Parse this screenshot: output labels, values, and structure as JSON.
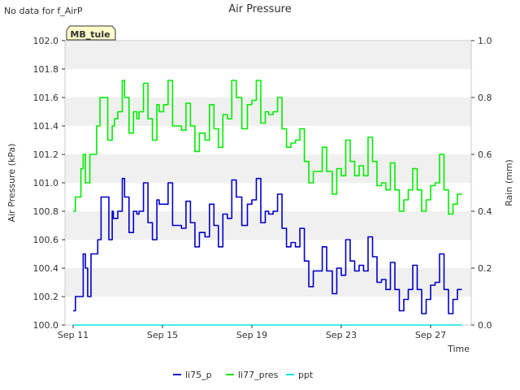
{
  "nodata_note": "No data for f_AirP",
  "chart_data": {
    "type": "line",
    "title": "Air Pressure",
    "xlabel": "Time",
    "ylabel": "Air Pressure (kPa)",
    "y2label": "Rain (mm)",
    "station_badge": "MB_tule",
    "xlim": [
      0,
      18
    ],
    "xticks": [
      {
        "day": 0,
        "label": "Sep 11"
      },
      {
        "day": 4,
        "label": "Sep 15"
      },
      {
        "day": 8,
        "label": "Sep 19"
      },
      {
        "day": 12,
        "label": "Sep 23"
      },
      {
        "day": 16,
        "label": "Sep 27"
      }
    ],
    "ylim": [
      100.0,
      102.0
    ],
    "yticks": [
      "100.0",
      "100.2",
      "100.4",
      "100.6",
      "100.8",
      "101.0",
      "101.2",
      "101.4",
      "101.6",
      "101.8",
      "102.0"
    ],
    "y2lim": [
      0.0,
      1.0
    ],
    "y2ticks": [
      "0.0",
      "0.2",
      "0.4",
      "0.6",
      "0.8",
      "1.0"
    ],
    "legend_position": "bottom-center",
    "series": [
      {
        "name": "li75_p",
        "axis": "left",
        "color": "#0000cc",
        "x": [
          0.0,
          0.1,
          0.25,
          0.45,
          0.55,
          0.65,
          0.8,
          0.95,
          1.1,
          1.25,
          1.45,
          1.6,
          1.75,
          1.8,
          2.0,
          2.2,
          2.3,
          2.5,
          2.7,
          2.85,
          2.95,
          3.15,
          3.35,
          3.55,
          3.75,
          3.85,
          4.05,
          4.25,
          4.45,
          4.7,
          4.85,
          5.05,
          5.25,
          5.45,
          5.65,
          5.9,
          6.1,
          6.3,
          6.5,
          6.7,
          6.9,
          7.1,
          7.3,
          7.55,
          7.8,
          8.0,
          8.2,
          8.4,
          8.6,
          8.75,
          8.95,
          9.15,
          9.35,
          9.55,
          9.75,
          9.95,
          10.15,
          10.35,
          10.55,
          10.75,
          10.95,
          11.15,
          11.35,
          11.6,
          11.8,
          12.0,
          12.2,
          12.4,
          12.6,
          12.8,
          13.0,
          13.2,
          13.4,
          13.6,
          13.8,
          14.0,
          14.2,
          14.4,
          14.6,
          14.8,
          15.0,
          15.2,
          15.4,
          15.6,
          15.8,
          16.0,
          16.2,
          16.4,
          16.6,
          16.8,
          17.0,
          17.2,
          17.4
        ],
        "values": [
          100.1,
          100.2,
          100.2,
          100.5,
          100.4,
          100.2,
          100.5,
          100.5,
          100.6,
          100.9,
          100.9,
          100.6,
          100.8,
          100.75,
          100.8,
          101.03,
          100.9,
          100.65,
          100.8,
          100.78,
          100.8,
          101.0,
          100.72,
          100.6,
          100.88,
          100.85,
          100.85,
          101.0,
          100.7,
          100.7,
          100.68,
          100.87,
          100.72,
          100.55,
          100.65,
          100.62,
          100.85,
          100.7,
          100.55,
          100.78,
          100.75,
          101.02,
          100.9,
          100.7,
          100.85,
          100.88,
          101.03,
          100.72,
          100.8,
          100.78,
          100.8,
          100.92,
          100.68,
          100.55,
          100.58,
          100.55,
          100.68,
          100.45,
          100.27,
          100.38,
          100.38,
          100.55,
          100.38,
          100.22,
          100.4,
          100.35,
          100.6,
          100.45,
          100.38,
          100.42,
          100.38,
          100.62,
          100.48,
          100.3,
          100.32,
          100.25,
          100.44,
          100.25,
          100.1,
          100.18,
          100.25,
          100.42,
          100.25,
          100.08,
          100.18,
          100.28,
          100.3,
          100.5,
          100.25,
          100.08,
          100.18,
          100.25,
          100.25
        ]
      },
      {
        "name": "li77_pres",
        "axis": "left",
        "color": "#00ee00",
        "x": [
          0.0,
          0.1,
          0.25,
          0.35,
          0.45,
          0.55,
          0.75,
          0.9,
          1.05,
          1.2,
          1.4,
          1.55,
          1.75,
          1.85,
          2.0,
          2.2,
          2.3,
          2.5,
          2.7,
          2.85,
          2.95,
          3.15,
          3.35,
          3.55,
          3.75,
          3.85,
          4.05,
          4.25,
          4.45,
          4.7,
          4.85,
          5.05,
          5.25,
          5.45,
          5.65,
          5.9,
          6.1,
          6.3,
          6.5,
          6.7,
          6.9,
          7.1,
          7.3,
          7.55,
          7.8,
          8.0,
          8.2,
          8.4,
          8.6,
          8.75,
          8.95,
          9.15,
          9.35,
          9.55,
          9.75,
          9.95,
          10.15,
          10.35,
          10.55,
          10.75,
          10.95,
          11.15,
          11.35,
          11.6,
          11.8,
          12.0,
          12.2,
          12.4,
          12.6,
          12.8,
          13.0,
          13.2,
          13.4,
          13.6,
          13.8,
          14.0,
          14.2,
          14.4,
          14.6,
          14.8,
          15.0,
          15.2,
          15.4,
          15.6,
          15.8,
          16.0,
          16.2,
          16.4,
          16.6,
          16.8,
          17.0,
          17.2,
          17.4
        ],
        "values": [
          100.8,
          100.9,
          100.9,
          101.1,
          101.2,
          101.0,
          101.2,
          101.2,
          101.4,
          101.6,
          101.6,
          101.3,
          101.4,
          101.45,
          101.5,
          101.72,
          101.6,
          101.35,
          101.5,
          101.45,
          101.5,
          101.7,
          101.45,
          101.3,
          101.55,
          101.5,
          101.55,
          101.72,
          101.4,
          101.4,
          101.37,
          101.56,
          101.4,
          101.22,
          101.35,
          101.3,
          101.55,
          101.38,
          101.25,
          101.48,
          101.45,
          101.72,
          101.6,
          101.38,
          101.55,
          101.58,
          101.72,
          101.42,
          101.5,
          101.48,
          101.5,
          101.6,
          101.38,
          101.25,
          101.28,
          101.3,
          101.38,
          101.15,
          101.0,
          101.08,
          101.08,
          101.25,
          101.08,
          100.92,
          101.1,
          101.05,
          101.3,
          101.15,
          101.05,
          101.12,
          101.05,
          101.32,
          101.15,
          100.98,
          101.0,
          100.95,
          101.14,
          100.95,
          100.8,
          100.88,
          100.95,
          101.1,
          100.95,
          100.8,
          100.88,
          100.98,
          101.0,
          101.2,
          100.95,
          100.78,
          100.85,
          100.92,
          100.92
        ]
      },
      {
        "name": "ppt",
        "axis": "right",
        "color": "#00e5e5",
        "x": [
          0.0,
          17.4
        ],
        "values": [
          0.0,
          0.0
        ]
      }
    ]
  }
}
